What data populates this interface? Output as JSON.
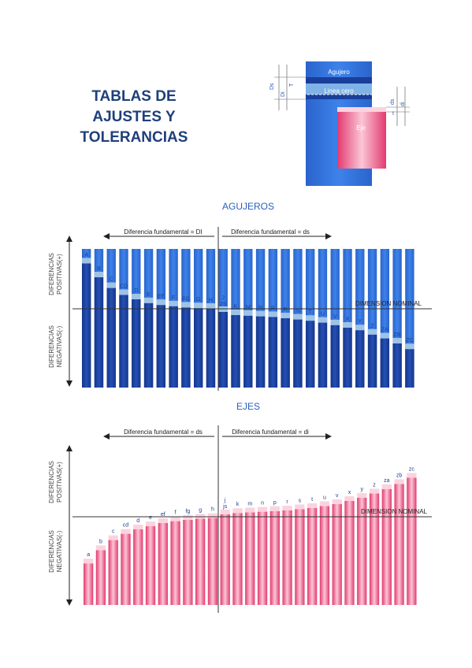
{
  "title_lines": [
    "TABLAS DE",
    "AJUSTES Y",
    "TOLERANCIAS"
  ],
  "schematic": {
    "hole_label": "Agujero",
    "zero_line_label": "Linea cero",
    "shaft_label": "Eje",
    "dim_labels": [
      "Ds",
      "Di",
      "T",
      "ds",
      "di",
      "t"
    ]
  },
  "colors": {
    "hole_blue": "#2f6fd6",
    "hole_blue_dark": "#1a3f9a",
    "shaft_pink": "#e8457a",
    "shaft_pink_light": "#fbd3df",
    "tolerance_band": "#9fc3e6",
    "title_color": "#1f3f7a"
  },
  "holes": {
    "section_title": "AGUJEROS",
    "arrow_left_label": "Diferencia fundamental = DI",
    "arrow_right_label": "Diferencia fundamental = ds",
    "zero_line_label": "DIMENSION NOMINAL",
    "positive_label_lines": [
      "DIFERENCIAS",
      "POSITIVAS(+)"
    ],
    "negative_label_lines": [
      "DIFERENCIAS",
      "NEGATIVAS(-)"
    ],
    "letters": [
      "A",
      "B",
      "C",
      "CD",
      "D",
      "E",
      "EF",
      "F",
      "FG",
      "G",
      "H",
      "J JS",
      "K",
      "M",
      "N",
      "P",
      "R",
      "S",
      "T",
      "U",
      "V",
      "X",
      "Y",
      "Z",
      "ZA",
      "ZB",
      "ZC"
    ],
    "level": [
      0.72,
      0.5,
      0.33,
      0.22,
      0.15,
      0.09,
      0.06,
      0.04,
      0.02,
      0.01,
      0.0,
      -0.05,
      -0.1,
      -0.11,
      -0.12,
      -0.13,
      -0.15,
      -0.17,
      -0.19,
      -0.22,
      -0.26,
      -0.3,
      -0.34,
      -0.41,
      -0.47,
      -0.55,
      -0.64
    ]
  },
  "shafts": {
    "section_title": "EJES",
    "arrow_left_label": "Diferencia fundamental = ds",
    "arrow_right_label": "Diferencia fundamental = di",
    "zero_line_label": "DIMENSION NOMINAL",
    "positive_label_lines": [
      "DIFERENCIAS",
      "POSITIVAS(+)"
    ],
    "negative_label_lines": [
      "DIFERENCIAS",
      "NEGATIVAS(-)"
    ],
    "letters": [
      "a",
      "b",
      "c",
      "cd",
      "d",
      "e",
      "ef",
      "f",
      "fg",
      "g",
      "h",
      "j js",
      "k",
      "m",
      "n",
      "p",
      "r",
      "s",
      "t",
      "u",
      "v",
      "x",
      "y",
      "z",
      "za",
      "zb",
      "zc"
    ],
    "level": [
      -0.74,
      -0.53,
      -0.37,
      -0.27,
      -0.2,
      -0.15,
      -0.1,
      -0.07,
      -0.05,
      -0.03,
      -0.02,
      0.04,
      0.06,
      0.07,
      0.08,
      0.09,
      0.1,
      0.12,
      0.14,
      0.17,
      0.2,
      0.25,
      0.3,
      0.37,
      0.44,
      0.52,
      0.62
    ]
  }
}
